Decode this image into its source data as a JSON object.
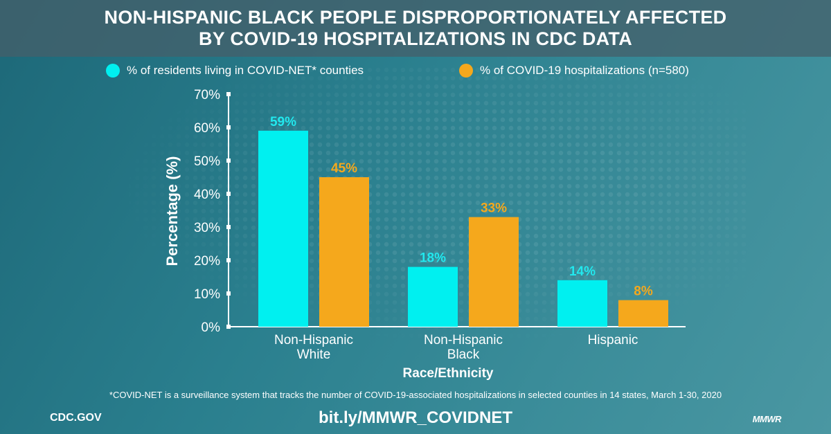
{
  "title": {
    "line1": "NON-HISPANIC BLACK PEOPLE DISPROPORTIONATELY AFFECTED",
    "line2": "BY COVID-19 HOSPITALIZATIONS IN CDC DATA"
  },
  "chart_data": {
    "type": "bar",
    "title": "NON-HISPANIC BLACK PEOPLE DISPROPORTIONATELY AFFECTED BY COVID-19 HOSPITALIZATIONS IN CDC DATA",
    "categories": [
      [
        "Non-Hispanic",
        "White"
      ],
      [
        "Non-Hispanic",
        "Black"
      ],
      [
        "Hispanic"
      ]
    ],
    "series": [
      {
        "name": "% of residents living in COVID-NET* counties",
        "color": "#00f0f0",
        "label_color": "#22e8ee",
        "values": [
          59,
          18,
          14
        ],
        "labels": [
          "59%",
          "18%",
          "14%"
        ]
      },
      {
        "name": "% of COVID-19 hospitalizations (n=580)",
        "color": "#f5a81c",
        "label_color": "#f5a81c",
        "values": [
          45,
          33,
          8
        ],
        "labels": [
          "45%",
          "33%",
          "8%"
        ]
      }
    ],
    "xlabel": "Race/Ethnicity",
    "ylabel": "Percentage (%)",
    "ylim": [
      0,
      70
    ],
    "yticks": [
      0,
      10,
      20,
      30,
      40,
      50,
      60,
      70
    ],
    "ytick_labels": [
      "0%",
      "10%",
      "20%",
      "30%",
      "40%",
      "50%",
      "60%",
      "70%"
    ],
    "grid": false,
    "legend_position": "top"
  },
  "footnote": "*COVID-NET is a surveillance system that tracks the number of COVID-19-associated hospitalizations in selected counties in 14 states, March 1-30, 2020",
  "footer": {
    "left": "CDC.GOV",
    "center": "bit.ly/MMWR_COVIDNET",
    "right": "MMWR"
  }
}
